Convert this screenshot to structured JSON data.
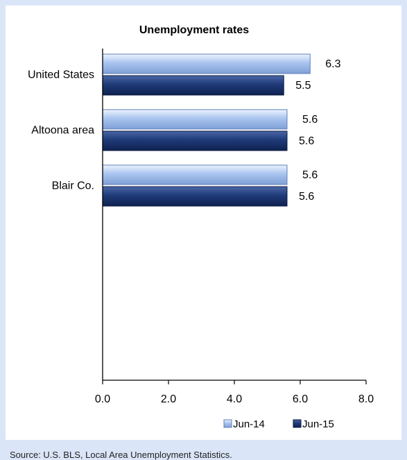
{
  "chart_data": {
    "type": "bar",
    "orientation": "horizontal",
    "title": "Unemployment rates",
    "categories": [
      "United States",
      "Altoona area",
      "Blair Co."
    ],
    "series": [
      {
        "name": "Jun-14",
        "values": [
          6.3,
          5.6,
          5.6
        ],
        "color": "#a9c4ef"
      },
      {
        "name": "Jun-15",
        "values": [
          5.5,
          5.6,
          5.6
        ],
        "color": "#1f3a78"
      }
    ],
    "xlim": [
      0,
      8
    ],
    "x_ticks": [
      "0.0",
      "2.0",
      "4.0",
      "6.0",
      "8.0"
    ],
    "grid": false,
    "legend_position": "bottom-right"
  },
  "footer": {
    "source": "Source: U.S. BLS, Local Area Unemployment Statistics."
  },
  "colors": {
    "background": "#dbe5f8",
    "panel": "#ffffff",
    "light_series": "#a9c4ef",
    "dark_series": "#1f3a78"
  }
}
